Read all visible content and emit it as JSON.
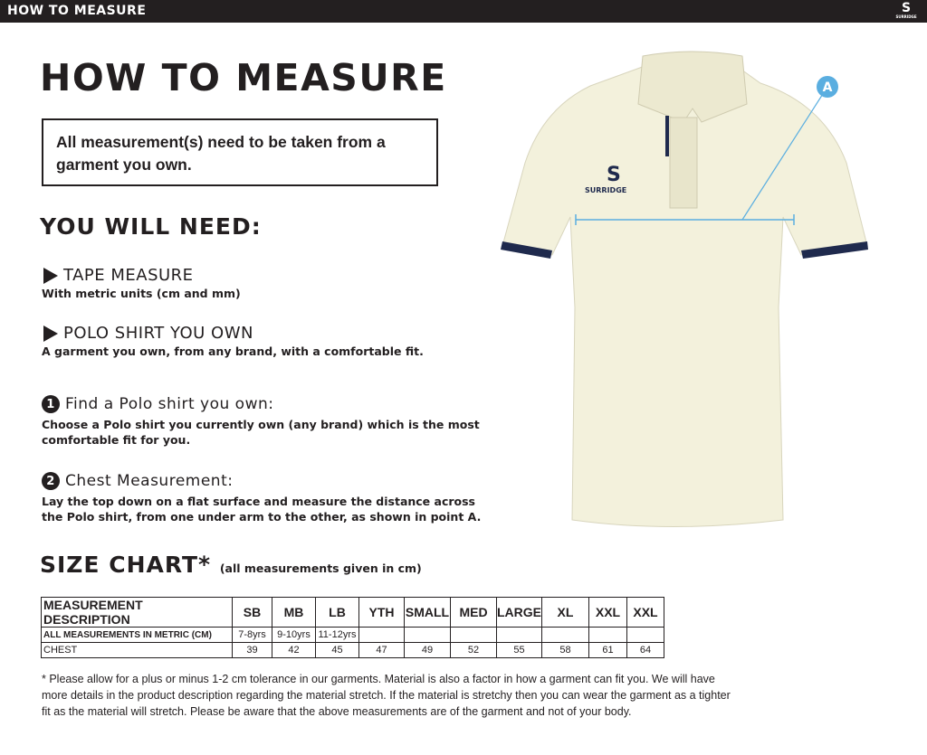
{
  "header": {
    "title": "HOW TO MEASURE",
    "brand": "SURRIDGE"
  },
  "title": "HOW TO MEASURE",
  "note": "All measurement(s) need to be taken from a garment you own.",
  "you_will_need": {
    "heading": "YOU WILL NEED:",
    "items": [
      {
        "title": "TAPE MEASURE",
        "desc": "With metric units (cm and mm)"
      },
      {
        "title": "POLO SHIRT YOU OWN",
        "desc": "A garment you own, from any brand, with a comfortable fit."
      }
    ]
  },
  "steps": [
    {
      "num": "1",
      "title": "Find a Polo shirt you own:",
      "desc": "Choose a Polo shirt you currently own (any brand) which is the most comfortable fit for you."
    },
    {
      "num": "2",
      "title": "Chest Measurement:",
      "desc": "Lay the top down on a flat surface and measure the distance across the Polo shirt, from one under arm to the other, as shown in point A."
    }
  ],
  "size_chart": {
    "heading": "SIZE CHART*",
    "subheading": "(all measurements given in cm)",
    "columns": [
      "MEASUREMENT DESCRIPTION",
      "SB",
      "MB",
      "LB",
      "YTH",
      "SMALL",
      "MED",
      "LARGE",
      "XL",
      "XXL",
      "XXL"
    ],
    "rows": [
      [
        "ALL MEASUREMENTS IN METRIC (CM)",
        "7-8yrs",
        "9-10yrs",
        "11-12yrs",
        "",
        "",
        "",
        "",
        "",
        "",
        ""
      ],
      [
        "CHEST",
        "39",
        "42",
        "45",
        "47",
        "49",
        "52",
        "55",
        "58",
        "61",
        "64"
      ]
    ]
  },
  "footnote": "* Please allow for a plus or minus 1-2 cm tolerance in our garments. Material is also a factor in how a garment can fit you. We will have more details in the product description regarding the material stretch.  If the material is stretchy then you can wear the garment as a tighter fit as the material will stretch.  Please be aware that the above measurements are of the garment and not of your body.",
  "diagram": {
    "point_label": "A",
    "shirt_brand": "SURRIDGE",
    "colors": {
      "shirt": "#f3f1dc",
      "trim": "#1f2a4d",
      "measure": "#5aaee0"
    }
  }
}
